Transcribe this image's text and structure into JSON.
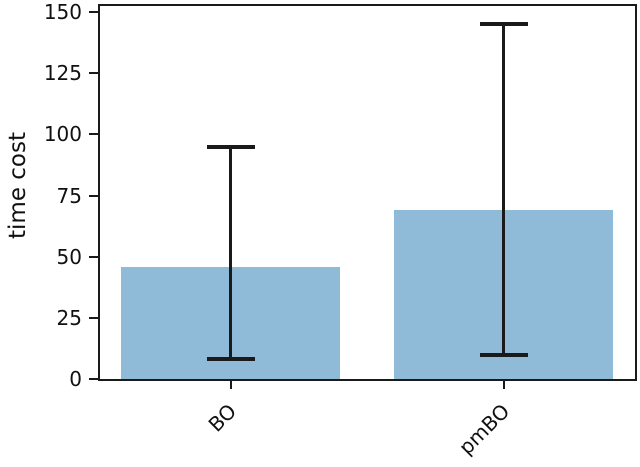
{
  "chart_data": {
    "type": "bar",
    "ylabel": "time cost",
    "categories": [
      "BO",
      "pmBO"
    ],
    "values": [
      46,
      69
    ],
    "error_bars": [
      {
        "min": 8,
        "max": 95
      },
      {
        "min": 10,
        "max": 145
      }
    ],
    "yticks": [
      0,
      25,
      50,
      75,
      100,
      125,
      150
    ],
    "ylim": [
      0,
      152.5
    ],
    "bar_color": "#8fbbd9",
    "errorbar_color": "#1a1a1a",
    "grid": false,
    "legend_visible": false
  }
}
